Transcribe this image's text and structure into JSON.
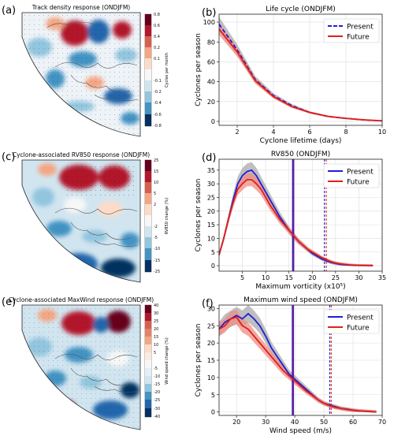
{
  "panels": {
    "a": {
      "label": "(a)",
      "title": "Track density response (ONDJFM)",
      "cbar_label": "Cycles per month",
      "cbar_ticks": [
        "0.8",
        "0.6",
        "0.4",
        "0.2",
        "0.1",
        "-0.1",
        "-0.2",
        "-0.4",
        "-0.6",
        "-0.8"
      ]
    },
    "c": {
      "label": "(c)",
      "title": "Cyclone-associated RV850 response (ONDJFM)",
      "cbar_label": "RV850 change (%)",
      "cbar_ticks": [
        "25",
        "15",
        "10",
        "5",
        "2",
        "-2",
        "-5",
        "-10",
        "-15",
        "-25"
      ]
    },
    "e": {
      "label": "(e)",
      "title": "Cyclone-associated MaxWind response (ONDJFM)",
      "cbar_label": "Wind speed change (%)",
      "cbar_ticks": [
        "40",
        "30",
        "25",
        "20",
        "15",
        "10",
        "5",
        "-5",
        "-10",
        "-15",
        "-20",
        "-25",
        "-30",
        "-40"
      ]
    }
  },
  "colors": {
    "present": "#1f1fd6",
    "future": "#e0201a",
    "vline": "#7a1a8a",
    "grey_band": "#a9a9a9",
    "red_band": "#f08c84"
  },
  "chart_data": [
    {
      "id": "b",
      "label": "(b)",
      "type": "line",
      "title": "Life cycle (ONDJFM)",
      "xlabel": "Cyclone lifetime (days)",
      "ylabel": "Cyclones per season",
      "xlim": [
        1,
        10
      ],
      "ylim": [
        -4,
        108
      ],
      "xticks": [
        2,
        4,
        6,
        8,
        10
      ],
      "yticks": [
        0,
        20,
        40,
        60,
        80,
        100
      ],
      "legend_position": "top-right",
      "grid": true,
      "series": [
        {
          "name": "Present",
          "style": "dashed",
          "x": [
            1,
            2,
            3,
            4,
            5,
            6,
            7,
            8,
            9,
            10
          ],
          "y": [
            98,
            72,
            42,
            26,
            16,
            9,
            5,
            3,
            1.5,
            0.5
          ]
        },
        {
          "name": "Future",
          "style": "solid",
          "x": [
            1,
            2,
            3,
            4,
            5,
            6,
            7,
            8,
            9,
            10
          ],
          "y": [
            93,
            70,
            41,
            25,
            15,
            9,
            5,
            3,
            1.5,
            0.5
          ]
        }
      ]
    },
    {
      "id": "d",
      "label": "(d)",
      "type": "line",
      "title": "RV850 (ONDJFM)",
      "xlabel": "Maximum vorticity (x10⁵)",
      "ylabel": "Cyclones per season",
      "xlim": [
        0,
        35
      ],
      "ylim": [
        -2,
        39
      ],
      "xticks": [
        5,
        10,
        15,
        20,
        25,
        30,
        35
      ],
      "yticks": [
        0,
        5,
        10,
        15,
        20,
        25,
        30,
        35
      ],
      "legend_position": "top-right",
      "grid": true,
      "series": [
        {
          "name": "Present",
          "style": "solid",
          "x": [
            0,
            1,
            2,
            3,
            4,
            5,
            6,
            7,
            8,
            9,
            10,
            11,
            12,
            13,
            14,
            15,
            16,
            17,
            18,
            19,
            20,
            21,
            22,
            23,
            24,
            25,
            26,
            27,
            28,
            29,
            30,
            31,
            32,
            33
          ],
          "y": [
            4,
            10,
            17,
            24,
            30,
            33,
            34.5,
            35,
            33,
            30,
            27,
            24,
            21,
            18,
            15.5,
            13,
            11,
            9,
            7.5,
            6,
            4.5,
            3.5,
            2.5,
            1.8,
            1.2,
            0.8,
            0.5,
            0.3,
            0.2,
            0.1,
            0.1,
            0.05,
            0.05,
            0
          ]
        },
        {
          "name": "Future",
          "style": "solid",
          "x": [
            0,
            1,
            2,
            3,
            4,
            5,
            6,
            7,
            8,
            9,
            10,
            11,
            12,
            13,
            14,
            15,
            16,
            17,
            18,
            19,
            20,
            21,
            22,
            23,
            24,
            25,
            26,
            27,
            28,
            29,
            30,
            31,
            32,
            33
          ],
          "y": [
            4,
            10,
            17,
            23,
            28,
            30,
            31.5,
            31.5,
            30,
            28,
            25,
            22,
            19.5,
            17,
            15,
            13,
            11,
            9,
            7.5,
            6,
            5,
            4,
            3,
            2.2,
            1.5,
            1,
            0.7,
            0.5,
            0.3,
            0.2,
            0.1,
            0.1,
            0.05,
            0
          ]
        }
      ],
      "vlines": [
        {
          "x": 15.8,
          "style": "solid",
          "series": "Present"
        },
        {
          "x": 16.0,
          "style": "solid",
          "series": "Future"
        },
        {
          "x": 22.6,
          "style": "dashed",
          "series": "Present"
        },
        {
          "x": 23.0,
          "style": "dashed",
          "series": "Future"
        }
      ]
    },
    {
      "id": "f",
      "label": "(f)",
      "type": "line",
      "title": "Maximum wind speed (ONDJFM)",
      "xlabel": "Wind speed (m/s)",
      "ylabel": "Cyclones per season",
      "xlim": [
        14,
        70
      ],
      "ylim": [
        -1,
        31
      ],
      "xticks": [
        20,
        30,
        40,
        50,
        60,
        70
      ],
      "yticks": [
        0,
        5,
        10,
        15,
        20,
        25,
        30
      ],
      "legend_position": "top-right",
      "grid": true,
      "series": [
        {
          "name": "Present",
          "style": "solid",
          "x": [
            14,
            16,
            18,
            20,
            22,
            24,
            26,
            28,
            30,
            32,
            34,
            36,
            38,
            40,
            42,
            44,
            46,
            48,
            50,
            52,
            54,
            56,
            58,
            60,
            62,
            64,
            66,
            68
          ],
          "y": [
            24,
            26,
            27,
            28,
            27,
            28.5,
            27,
            25,
            22,
            18.5,
            16,
            13.5,
            11,
            9.5,
            8,
            6.5,
            5,
            3.5,
            2.5,
            2,
            1.5,
            1,
            0.8,
            0.5,
            0.3,
            0.2,
            0.1,
            0
          ]
        },
        {
          "name": "Future",
          "style": "solid",
          "x": [
            14,
            16,
            18,
            20,
            22,
            24,
            26,
            28,
            30,
            32,
            34,
            36,
            38,
            40,
            42,
            44,
            46,
            48,
            50,
            52,
            54,
            56,
            58,
            60,
            62,
            64,
            66,
            68
          ],
          "y": [
            24,
            25,
            27,
            27.5,
            25,
            24,
            22,
            20,
            18,
            16,
            14,
            12,
            10.5,
            9,
            7.5,
            6,
            4.8,
            3.5,
            2.5,
            1.8,
            1.3,
            1,
            0.7,
            0.5,
            0.3,
            0.2,
            0.1,
            0
          ]
        }
      ],
      "vlines": [
        {
          "x": 39.2,
          "style": "solid",
          "series": "Present"
        },
        {
          "x": 39.5,
          "style": "solid",
          "series": "Future"
        },
        {
          "x": 52.0,
          "style": "dashed",
          "series": "Present"
        },
        {
          "x": 52.5,
          "style": "dashed",
          "series": "Future"
        }
      ]
    }
  ]
}
